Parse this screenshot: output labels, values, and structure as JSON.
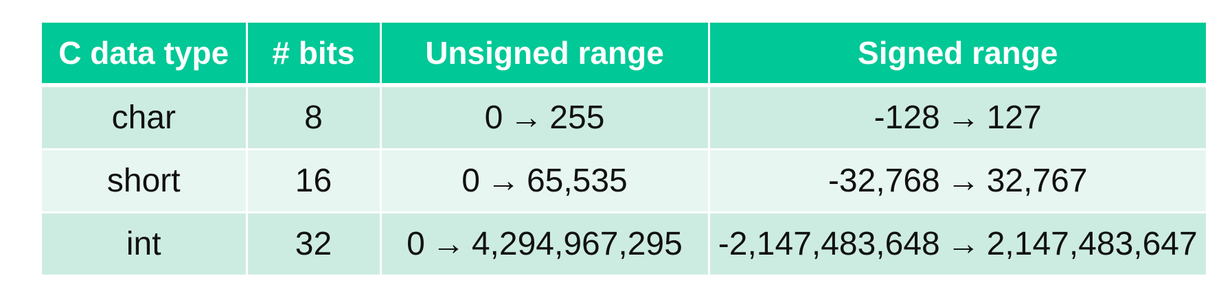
{
  "colors": {
    "header_bg": "#00c896",
    "header_text": "#ffffff",
    "row_odd_bg": "#cdece1",
    "row_even_bg": "#e7f6f1",
    "cell_text": "#111111"
  },
  "table": {
    "headers": [
      "C data type",
      "# bits",
      "Unsigned range",
      "Signed range"
    ],
    "arrow": "→",
    "rows": [
      {
        "type": "char",
        "bits": "8",
        "unsigned_min": "0",
        "unsigned_max": "255",
        "signed_min": "-128",
        "signed_max": "127"
      },
      {
        "type": "short",
        "bits": "16",
        "unsigned_min": "0",
        "unsigned_max": "65,535",
        "signed_min": "-32,768",
        "signed_max": "32,767"
      },
      {
        "type": "int",
        "bits": "32",
        "unsigned_min": "0",
        "unsigned_max": "4,294,967,295",
        "signed_min": "-2,147,483,648",
        "signed_max": "2,147,483,647"
      }
    ]
  }
}
